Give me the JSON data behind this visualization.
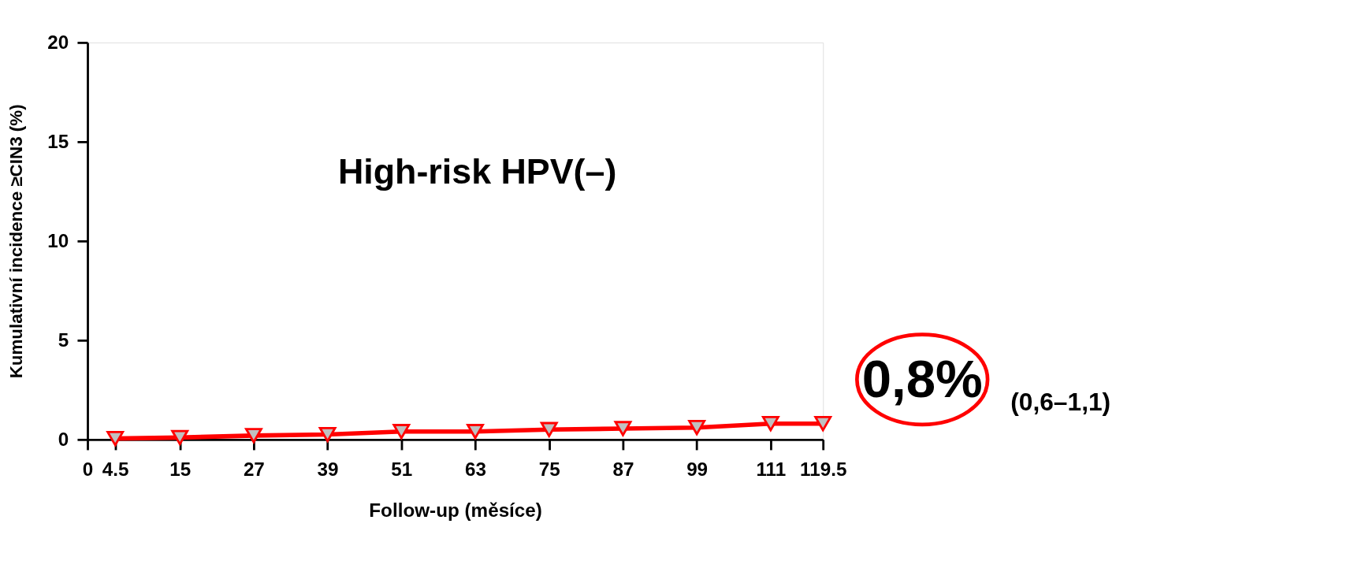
{
  "chart_data": {
    "type": "line",
    "xlabel": "Follow-up (měsíce)",
    "ylabel": "Kumulativní incidence ≥CIN3 (%)",
    "x": [
      4.5,
      15,
      27,
      39,
      51,
      63,
      75,
      87,
      99,
      111,
      119.5
    ],
    "series": [
      {
        "color": "#ff0000",
        "values": [
          0.05,
          0.1,
          0.2,
          0.25,
          0.4,
          0.4,
          0.5,
          0.55,
          0.6,
          0.8,
          0.8
        ]
      }
    ],
    "xlim": [
      0,
      119.5
    ],
    "xticks": [
      0,
      {
        "value": 4.5,
        "label": "4.5"
      },
      15,
      27,
      39,
      51,
      63,
      75,
      87,
      99,
      111,
      {
        "value": 119.5,
        "label": "119.5"
      }
    ],
    "ylim": [
      0,
      20
    ],
    "yticks": [
      0,
      5,
      10,
      15,
      20
    ],
    "grid": false,
    "legend": false,
    "marker": "triangle",
    "line_style": "solid",
    "annotations": [
      "High-risk HPV(–)",
      {
        "text": "0,8%",
        "x": 119.5,
        "y": 0.8
      },
      "(0,6–1,1)"
    ]
  }
}
